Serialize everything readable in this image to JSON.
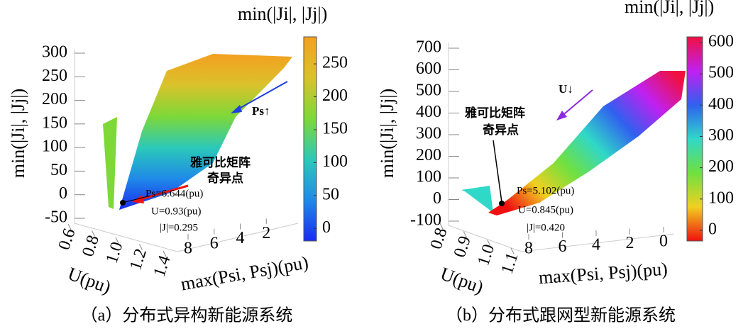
{
  "chart_data": [
    {
      "type": "surface3d",
      "title": "（a）分布式异构新能源系统",
      "zlabel": "min(|Ji|, |Jj|)",
      "zlim": [
        -50,
        300
      ],
      "zticks": [
        -50,
        0,
        50,
        100,
        150,
        200,
        250,
        300
      ],
      "xlabel": "U(pu)",
      "xlim": [
        0.6,
        1.4
      ],
      "xticks": [
        0.6,
        0.8,
        {
          "value": 1,
          "label": "1.0"
        },
        1.2,
        1.4
      ],
      "ylabel": "max(Psi, Psj)(pu)",
      "ylim": [
        0,
        8
      ],
      "yticks": [
        8,
        6,
        4,
        2
      ],
      "colorbar_title": "min(|Ji|, |Jj|)",
      "clim": [
        -19,
        291
      ],
      "cticks": [
        0,
        50,
        100,
        150,
        200,
        250
      ],
      "colormap": [
        "#1a2cf0",
        "#1f8ae8",
        "#2cc9b8",
        "#7ed838",
        "#d9c22b",
        "#f4a020"
      ],
      "annotations": [
        {
          "text": "Ps↑",
          "color": "#1f3fe0"
        },
        {
          "text": "雅可比矩阵",
          "color": "#ee1111"
        },
        {
          "text": "奇异点",
          "color": "#ee1111"
        },
        {
          "text": "Ps=6.644(pu)",
          "color": "#000000"
        },
        {
          "text": "U=0.93(pu)",
          "color": "#000000"
        },
        {
          "text": "|J|=0.295",
          "color": "#000000"
        }
      ]
    },
    {
      "type": "surface3d",
      "title": "（b）分布式跟网型新能源系统",
      "zlabel": "min(|Ji|, |Jj|)",
      "zlim": [
        -100,
        700
      ],
      "zticks": [
        -100,
        0,
        100,
        200,
        300,
        400,
        500,
        600,
        700
      ],
      "xlabel": "U(pu)",
      "xlim": [
        0.8,
        1.1
      ],
      "xticks": [
        0.8,
        0.9,
        {
          "value": 1,
          "label": "1.0"
        },
        1.1
      ],
      "ylabel": "max(Psi, Psj)(pu)",
      "ylim": [
        0,
        8
      ],
      "yticks": [
        8,
        6,
        4,
        2,
        0
      ],
      "colorbar_title": "min(|Ji|, |Jj|)",
      "clim": [
        -34,
        618
      ],
      "cticks": [
        0,
        100,
        200,
        300,
        400,
        500,
        600
      ],
      "colormap": [
        "#f01010",
        "#f0d020",
        "#70e040",
        "#30d8c8",
        "#3060f0",
        "#c020f0",
        "#f01040"
      ],
      "annotations": [
        {
          "text": "U↓",
          "color": "#8a2be2"
        },
        {
          "text": "雅可比矩阵",
          "color": "#ee1111"
        },
        {
          "text": "奇异点",
          "color": "#ee1111"
        },
        {
          "text": "Ps=5.102(pu)",
          "color": "#000000"
        },
        {
          "text": "U=0.845(pu)",
          "color": "#000000"
        },
        {
          "text": "|J|=0.420",
          "color": "#000000"
        }
      ]
    }
  ]
}
